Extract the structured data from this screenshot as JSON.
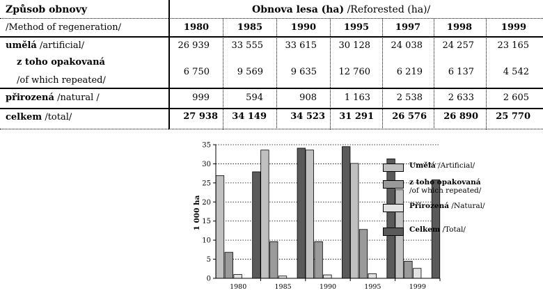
{
  "table": {
    "header_left_1": "Způsob obnovy",
    "header_left_2": "/Method of regeneration/",
    "header_right_bold": "Obnova lesa (ha)",
    "header_right_plain": "/Reforested (ha)/",
    "years": [
      "1980",
      "1985",
      "1990",
      "1995",
      "1997",
      "1998",
      "1999"
    ],
    "rows": [
      {
        "label_bold": "umělá",
        "label_plain": "/artificial/",
        "values": [
          "26 939",
          "33 555",
          "33 615",
          "30 128",
          "24 038",
          "24 257",
          "23 165"
        ]
      },
      {
        "label_bold": "z toho opakovaná",
        "label_plain": "/of which repeated/",
        "values": [
          "6 750",
          "9 569",
          "9 635",
          "12 760",
          "6 219",
          "6 137",
          "4 542"
        ]
      },
      {
        "label_bold": "přirozená",
        "label_plain": "/natural /",
        "values": [
          "999",
          "594",
          "908",
          "1 163",
          "2 538",
          "2 633",
          "2 605"
        ]
      },
      {
        "label_bold": "celkem",
        "label_plain": "/total/",
        "values": [
          "27 938",
          "34 149",
          "34 523",
          "31 291",
          "26 576",
          "26 890",
          "25 770"
        ]
      }
    ]
  },
  "chart_data": {
    "type": "bar",
    "categories": [
      "1980",
      "1985",
      "1990",
      "1995",
      "1999"
    ],
    "ylabel": "1 000 ha",
    "ylim": [
      0,
      35
    ],
    "yticks": [
      "0",
      "5",
      "10",
      "15",
      "20",
      "25",
      "30",
      "35"
    ],
    "grid": "horizontal dotted",
    "legend_position": "right",
    "series": [
      {
        "name_bold": "Umělá",
        "name_plain": "/Artificial/",
        "color": "#c0c0c0",
        "values": [
          26.9,
          33.6,
          33.6,
          30.1,
          23.2
        ]
      },
      {
        "name_bold": "z toho opakovaná",
        "name_plain": "/of which repeated/",
        "color": "#9a9a9a",
        "values": [
          6.8,
          9.6,
          9.6,
          12.8,
          4.5
        ]
      },
      {
        "name_bold": "Přirozená",
        "name_plain": "/Natural/",
        "color": "#e2e2e2",
        "values": [
          1.0,
          0.6,
          0.9,
          1.2,
          2.6
        ]
      },
      {
        "name_bold": "Celkem",
        "name_plain": "/Total/",
        "color": "#5a5a5a",
        "values": [
          27.9,
          34.1,
          34.5,
          31.3,
          25.8
        ]
      }
    ]
  }
}
